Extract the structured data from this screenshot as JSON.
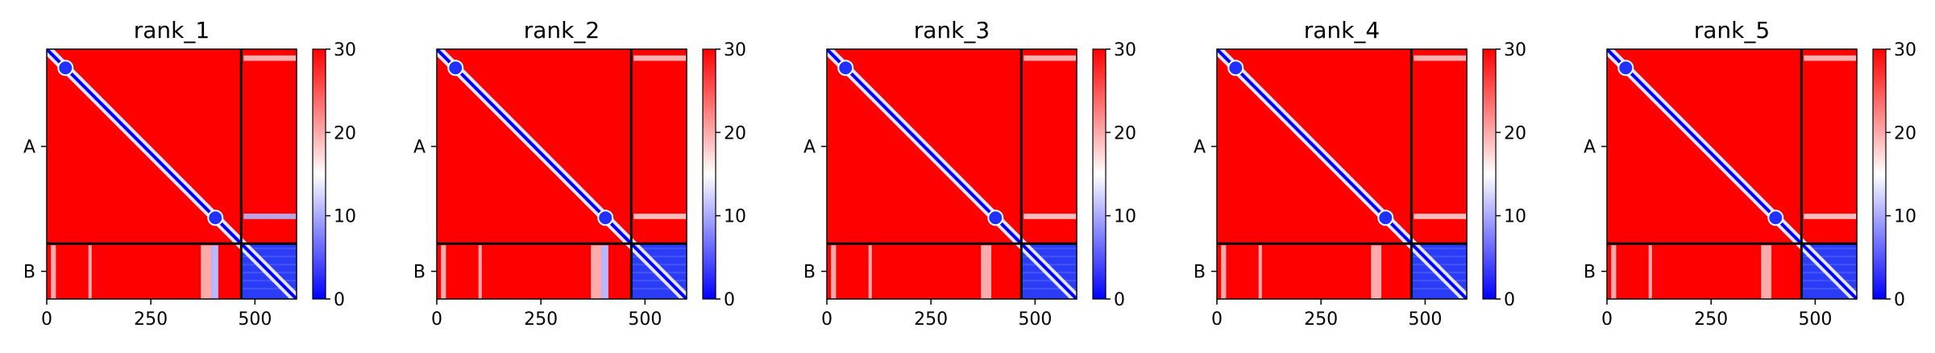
{
  "chart_data": {
    "type": "heatmap",
    "colormap": {
      "name": "bwr",
      "low": "#0000ff",
      "mid": "#ffffff",
      "high": "#ff0000"
    },
    "color_range": [
      0,
      30
    ],
    "colorbar_ticks": [
      "0",
      "10",
      "20",
      "30"
    ],
    "x_range": [
      0,
      600
    ],
    "x_ticks": [
      0,
      250,
      500
    ],
    "x_tick_labels": [
      "0",
      "250",
      "500"
    ],
    "chain_boundary": 467,
    "chains": [
      {
        "name": "A",
        "start": 0,
        "end": 467
      },
      {
        "name": "B",
        "start": 467,
        "end": 600
      }
    ],
    "panels": [
      {
        "title": "rank_1"
      },
      {
        "title": "rank_2"
      },
      {
        "title": "rank_3"
      },
      {
        "title": "rank_4"
      },
      {
        "title": "rank_5"
      }
    ]
  }
}
